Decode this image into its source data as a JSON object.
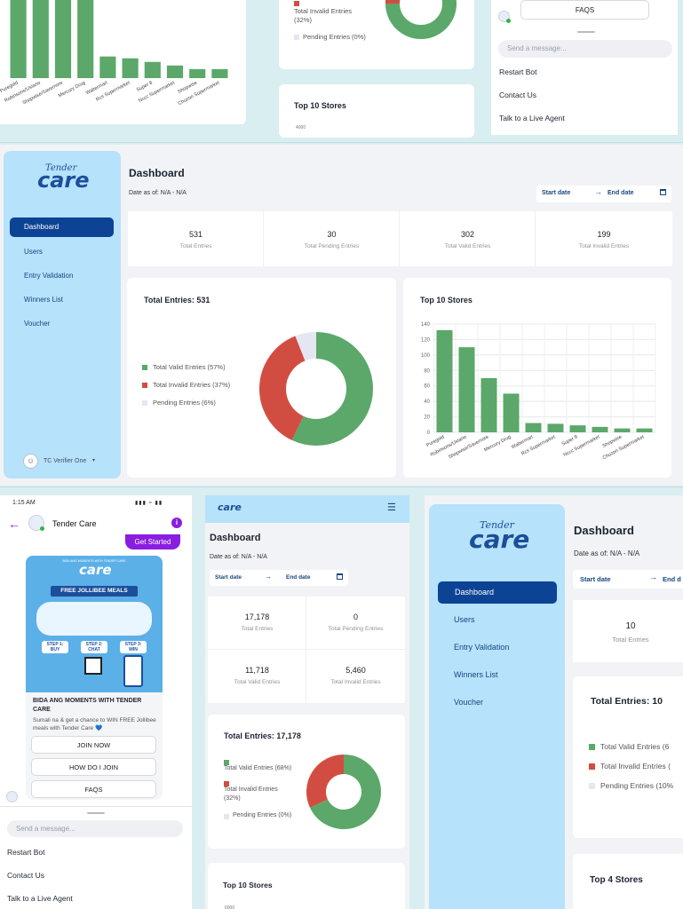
{
  "brand": {
    "top": "Tender",
    "bottom": "care"
  },
  "top_panels": {
    "bar_labels": [
      "Puregold",
      "Robinsons/Ustano",
      "Shopwise/Savemore",
      "Mercury Drug",
      "Waltermart",
      "Rcs Supermarket",
      "Super 8",
      "Nccc Supermarket",
      "Shopwise",
      "Chuzon Supermarket"
    ],
    "invalid_label": "Total Invalid Entries",
    "invalid_pct": "(32%)",
    "pending_label": "Pending Entries (0%)",
    "stores_title": "Top 10 Stores",
    "axis_top": "4000",
    "chat_faq": "FAQS",
    "chat_placeholder": "Send a message...",
    "menu": [
      "Restart Bot",
      "Contact Us",
      "Talk to a Live Agent"
    ]
  },
  "dashboard_main": {
    "nav": [
      "Dashboard",
      "Users",
      "Entry Validation",
      "Winners List",
      "Voucher"
    ],
    "user": "TC Verifier One",
    "title": "Dashboard",
    "date_as_of": "Date as of: N/A - N/A",
    "start_date": "Start date",
    "end_date": "End date",
    "stats": [
      {
        "value": "531",
        "label": "Total Entries"
      },
      {
        "value": "30",
        "label": "Total Pending Entries"
      },
      {
        "value": "302",
        "label": "Total Valid Entries"
      },
      {
        "value": "199",
        "label": "Total Invalid Entries"
      }
    ],
    "donut_title": "Total Entries: 531",
    "legend": [
      "Total Valid Entries (57%)",
      "Total Invalid Entries (37%)",
      "Pending Entries (6%)"
    ],
    "stores_title": "Top 10 Stores"
  },
  "chat_phone": {
    "time": "1:15 AM",
    "title": "Tender Care",
    "get_started": "Get Started",
    "promo_small": "BIDA ANG MOMENTS WITH TENDER CARE",
    "promo_banner": "FREE JOLLIBEE MEALS",
    "promo_step1": "STEP 1: BUY",
    "promo_step2": "STEP 2: CHAT",
    "promo_step3": "STEP 3: WIN",
    "card_title": "BIDA ANG MOMENTS WITH TENDER CARE",
    "card_desc": "Sumali na & get a chance to WIN FREE Jollibee meals with Tender Care 💙",
    "buttons": [
      "JOIN NOW",
      "HOW DO I JOIN",
      "FAQS"
    ],
    "placeholder": "Send a message...",
    "menu": [
      "Restart Bot",
      "Contact Us",
      "Talk to a Live Agent"
    ]
  },
  "dashboard_mobile": {
    "title": "Dashboard",
    "date_as_of": "Date as of: N/A - N/A",
    "start_date": "Start date",
    "end_date": "End date",
    "stats": [
      {
        "value": "17,178",
        "label": "Total Entries"
      },
      {
        "value": "0",
        "label": "Total Pending Entries"
      },
      {
        "value": "11,718",
        "label": "Total Valid Entries"
      },
      {
        "value": "5,460",
        "label": "Total Invalid Entries"
      }
    ],
    "donut_title": "Total Entries: 17,178",
    "legend_valid": "Total Valid Entries (68%)",
    "legend_invalid": "Total Invalid Entries",
    "legend_invalid_pct": "(32%)",
    "legend_pending": "Pending Entries (0%)",
    "stores_title": "Top 10 Stores",
    "axis_top": "6000"
  },
  "dashboard_right": {
    "nav": [
      "Dashboard",
      "Users",
      "Entry Validation",
      "Winners List",
      "Voucher"
    ],
    "title": "Dashboard",
    "date_as_of": "Date as of: N/A - N/A",
    "start_date": "Start date",
    "end_date": "End d",
    "stat_value": "10",
    "stat_label": "Total Entries",
    "donut_title": "Total Entries: 10",
    "legend": [
      "Total Valid Entries (6",
      "Total Invalid Entries (",
      "Pending Entries (10%"
    ],
    "stores_title": "Top 4 Stores"
  },
  "colors": {
    "valid": "#5ba86a",
    "invalid": "#d24d41",
    "pending": "#e4e7f1",
    "nav_active": "#0d4395",
    "sidebar": "#b6e2fb",
    "accent": "#8a1ee0"
  },
  "chart_data": [
    {
      "type": "bar",
      "title": "Top 10 Stores",
      "categories": [
        "Puregold",
        "Robinsons/Ustano",
        "Shopwise/Savemore",
        "Mercury Drug",
        "Waltermart",
        "Rcs Supermarket",
        "Super 8",
        "Nccc Supermarket",
        "Shopwise",
        "Chuzon Supermarket"
      ],
      "values": [
        132,
        110,
        70,
        50,
        12,
        11,
        9,
        7,
        5,
        5
      ],
      "ylim": [
        0,
        140
      ],
      "yticks": [
        0,
        20,
        40,
        60,
        80,
        100,
        120,
        140
      ],
      "grid": true
    },
    {
      "type": "pie",
      "title": "Total Entries: 531",
      "categories": [
        "Total Valid Entries (57%)",
        "Total Invalid Entries (37%)",
        "Pending Entries (6%)"
      ],
      "values": [
        57,
        37,
        6
      ]
    },
    {
      "type": "pie",
      "title": "Total Entries: 17,178",
      "categories": [
        "Total Valid Entries (68%)",
        "Total Invalid Entries (32%)",
        "Pending Entries (0%)"
      ],
      "values": [
        68,
        32,
        0
      ]
    }
  ]
}
